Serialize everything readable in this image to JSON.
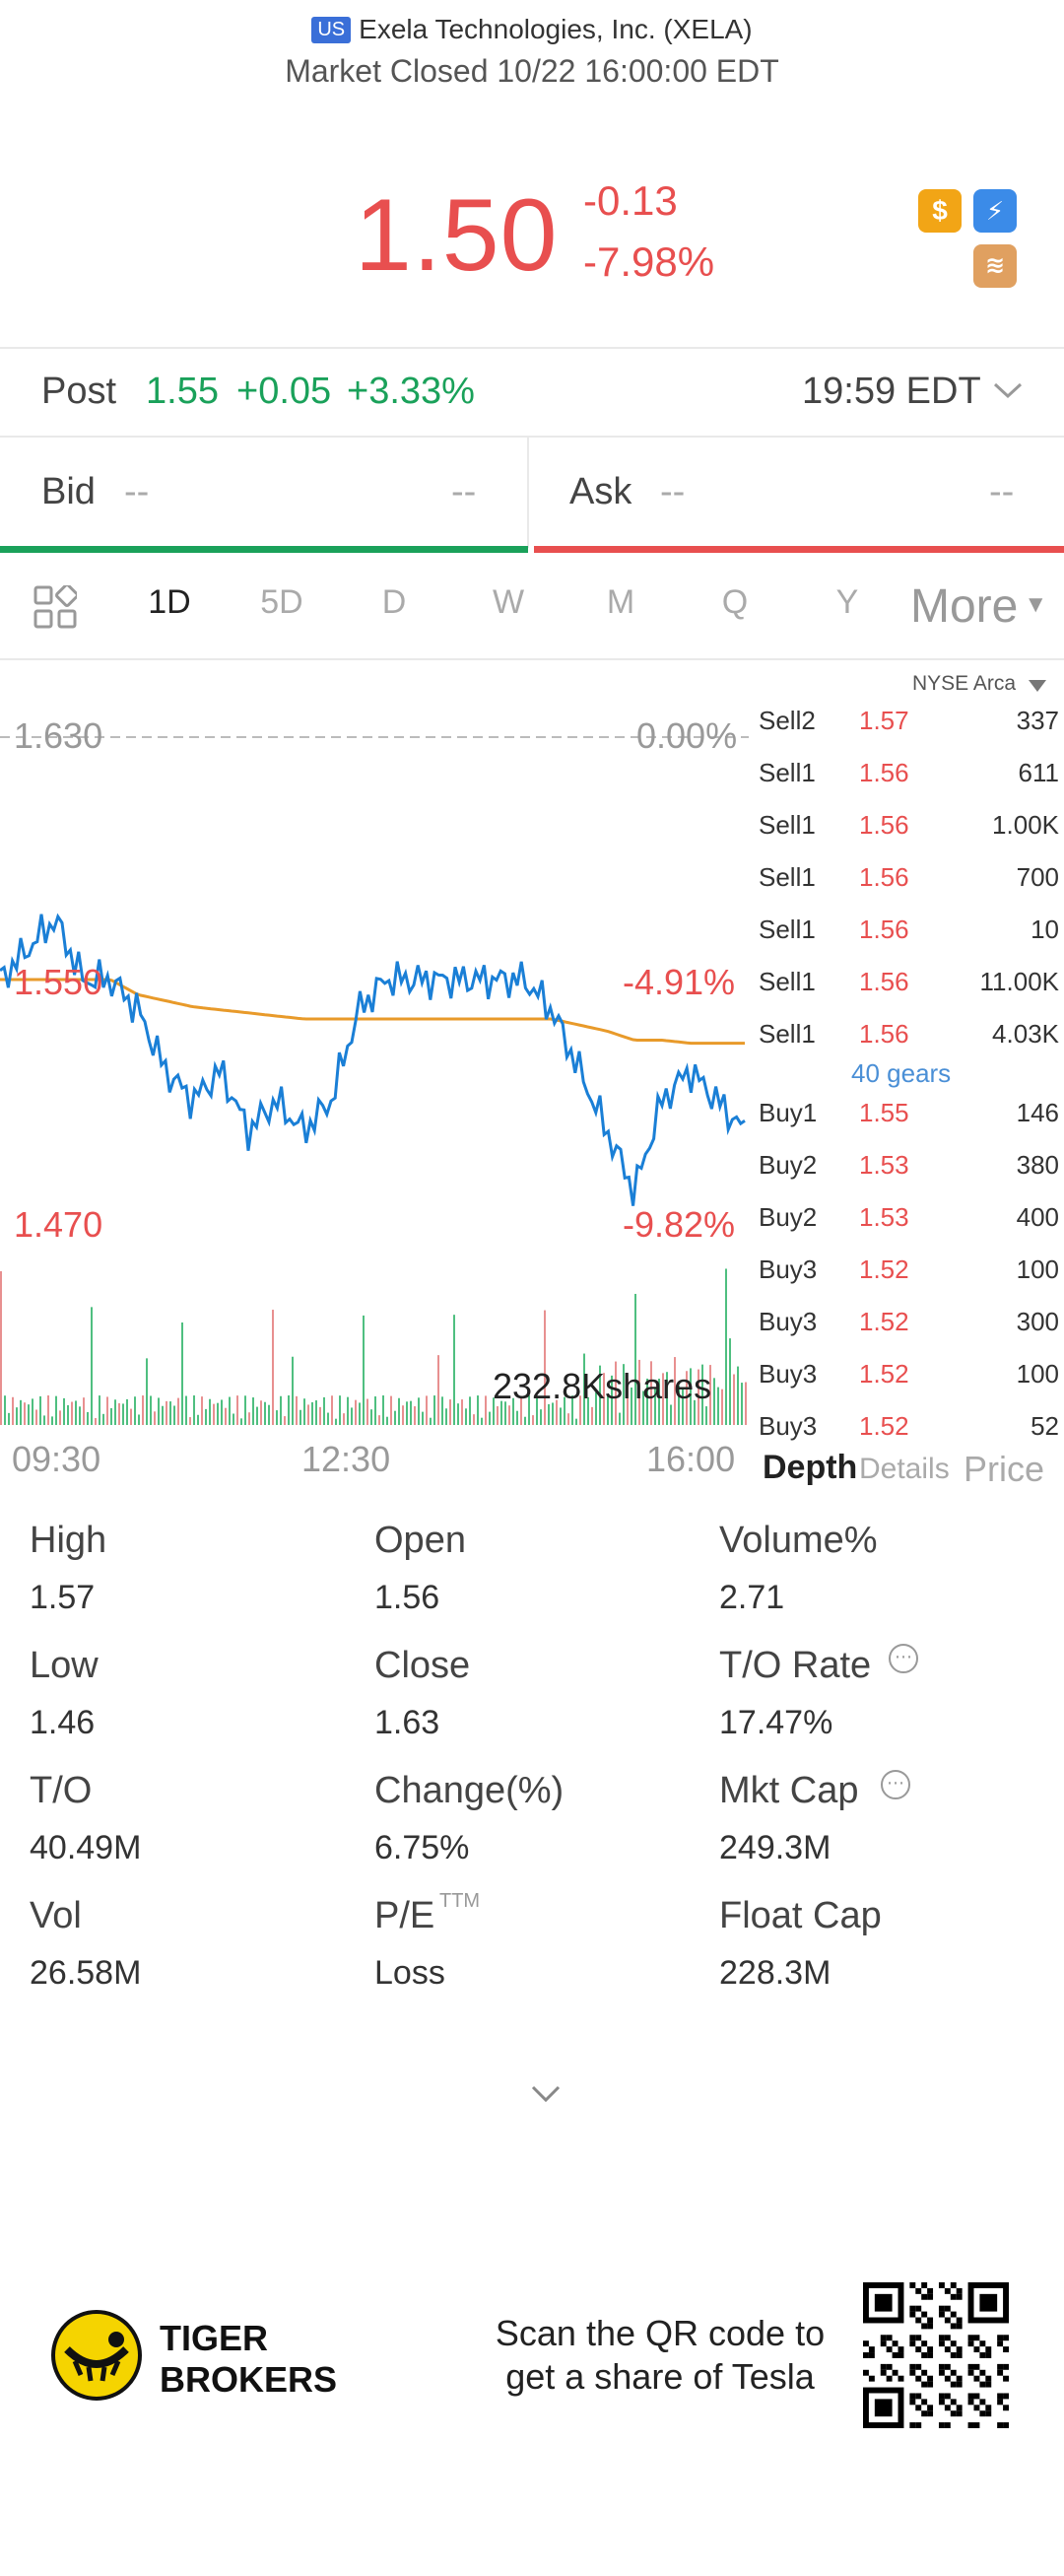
{
  "header": {
    "region_badge": "US",
    "company": "Exela Technologies, Inc. (XELA)",
    "market_status": "Market Closed 10/22 16:00:00 EDT"
  },
  "quote": {
    "price": "1.50",
    "change": "-0.13",
    "change_pct": "-7.98%"
  },
  "post": {
    "label": "Post",
    "price": "1.55",
    "change": "+0.05",
    "change_pct": "+3.33%",
    "time": "19:59 EDT"
  },
  "bidask": {
    "bid_label": "Bid",
    "bid_price": "--",
    "bid_size": "--",
    "ask_label": "Ask",
    "ask_price": "--",
    "ask_size": "--"
  },
  "tabs": [
    "1D",
    "5D",
    "D",
    "W",
    "M",
    "Q",
    "Y"
  ],
  "more_label": "More",
  "chart": {
    "exchange": "NYSE Arca",
    "top_price": "1.630",
    "top_pct": "0.00%",
    "mid_price": "1.550",
    "mid_pct": "-4.91%",
    "low_price": "1.470",
    "low_pct": "-9.82%",
    "volume_label": "232.8Kshares",
    "time_labels": [
      "09:30",
      "12:30",
      "16:00"
    ]
  },
  "chart_data": {
    "type": "line",
    "title": "",
    "xlabel": "",
    "ylabel": "",
    "ylim": [
      1.47,
      1.63
    ],
    "x_ticks": [
      "09:30",
      "12:30",
      "16:00"
    ],
    "series": [
      {
        "values": [
          1.55,
          1.56,
          1.57,
          1.55,
          1.55,
          1.54,
          1.52,
          1.51,
          1.52,
          1.5,
          1.51,
          1.5,
          1.51,
          1.54,
          1.55,
          1.55,
          1.55,
          1.55,
          1.55,
          1.55,
          1.54,
          1.52,
          1.5,
          1.48,
          1.51,
          1.52,
          1.51,
          1.5
        ]
      },
      {
        "values": [
          1.55,
          1.55,
          1.55,
          1.55,
          1.55,
          1.545,
          1.543,
          1.541,
          1.54,
          1.539,
          1.538,
          1.537,
          1.537,
          1.537,
          1.537,
          1.537,
          1.537,
          1.537,
          1.537,
          1.537,
          1.537,
          1.535,
          1.533,
          1.53,
          1.53,
          1.529,
          1.529,
          1.529
        ]
      }
    ]
  },
  "orderbook": {
    "rows": [
      {
        "side": "Sell2",
        "price": "1.57",
        "qty": "337"
      },
      {
        "side": "Sell1",
        "price": "1.56",
        "qty": "611"
      },
      {
        "side": "Sell1",
        "price": "1.56",
        "qty": "1.00K"
      },
      {
        "side": "Sell1",
        "price": "1.56",
        "qty": "700"
      },
      {
        "side": "Sell1",
        "price": "1.56",
        "qty": "10"
      },
      {
        "side": "Sell1",
        "price": "1.56",
        "qty": "11.00K"
      },
      {
        "side": "Sell1",
        "price": "1.56",
        "qty": "4.03K"
      }
    ],
    "gears": "40 gears",
    "buy_rows": [
      {
        "side": "Buy1",
        "price": "1.55",
        "qty": "146"
      },
      {
        "side": "Buy2",
        "price": "1.53",
        "qty": "380"
      },
      {
        "side": "Buy2",
        "price": "1.53",
        "qty": "400"
      },
      {
        "side": "Buy3",
        "price": "1.52",
        "qty": "100"
      },
      {
        "side": "Buy3",
        "price": "1.52",
        "qty": "300"
      },
      {
        "side": "Buy3",
        "price": "1.52",
        "qty": "100"
      },
      {
        "side": "Buy3",
        "price": "1.52",
        "qty": "52"
      }
    ],
    "tab_depth": "Depth",
    "tab_details": "Details",
    "tab_price": "Price"
  },
  "stats": [
    {
      "label": "High",
      "value": "1.57"
    },
    {
      "label": "Open",
      "value": "1.56"
    },
    {
      "label": "Volume%",
      "value": "2.71"
    },
    {
      "label": "Low",
      "value": "1.46"
    },
    {
      "label": "Close",
      "value": "1.63"
    },
    {
      "label": "T/O Rate",
      "value": "17.47%"
    },
    {
      "label": "T/O",
      "value": "40.49M"
    },
    {
      "label": "Change(%)",
      "value": "6.75%"
    },
    {
      "label": "Mkt Cap",
      "value": "249.3M"
    },
    {
      "label": "Vol",
      "value": "26.58M"
    },
    {
      "label": "P/E",
      "value": "Loss"
    },
    {
      "label": "Float Cap",
      "value": "228.3M"
    }
  ],
  "pe_superscript": "TTM",
  "footer": {
    "brand_line1": "TIGER",
    "brand_line2": "BROKERS",
    "promo_line1": "Scan the QR code to",
    "promo_line2": "get a share of Tesla"
  },
  "colors": {
    "down": "#e84f4f",
    "up": "#1aa15a",
    "price_line": "#1a7fd6",
    "avg_line": "#e89a2a",
    "brand_yellow": "#f5d400"
  }
}
